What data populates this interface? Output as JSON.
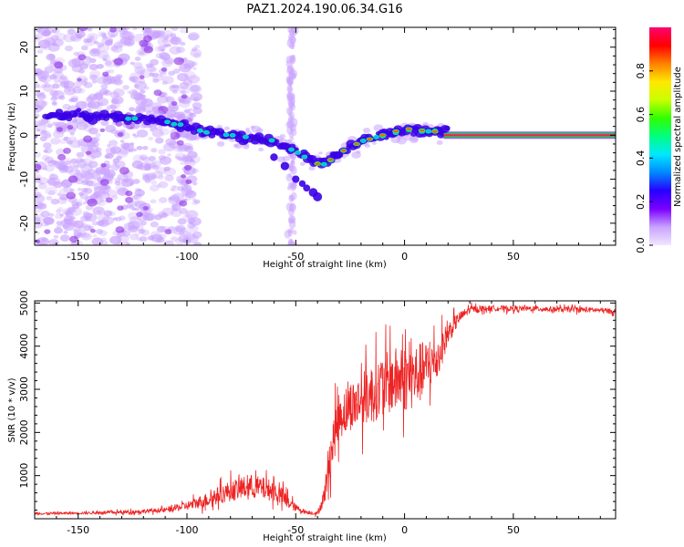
{
  "title": "PAZ1.2024.190.06.34.G16",
  "colors": {
    "snr_line": "#ee2222",
    "flat_band_outer": "#22cc44",
    "flat_band_inner": "#ff1a4a",
    "low_amplitude": "#c9a3ff",
    "mid_amplitude": "#3a00e6",
    "high_amplitude": "#00c8ff"
  },
  "chart_data": [
    {
      "type": "heatmap",
      "xlabel": "Height of straight line (km)",
      "ylabel": "Frequency (Hz)",
      "xlim": [
        -170,
        97
      ],
      "ylim": [
        -25,
        24.5
      ],
      "xticks": [
        -150,
        -100,
        -50,
        0,
        50
      ],
      "yticks": [
        -20,
        -10,
        0,
        10,
        20
      ],
      "colorbar": {
        "label": "Normalized spectral amplitude",
        "range": [
          0,
          1
        ],
        "ticks": [
          0.0,
          0.2,
          0.4,
          0.6,
          0.8
        ],
        "colormap": [
          "#f2e6ff",
          "#c9a3ff",
          "#7a00ff",
          "#2800ff",
          "#0088ff",
          "#00e8ff",
          "#00ff80",
          "#30ff00",
          "#c8ff00",
          "#ffe800",
          "#ff8000",
          "#ff0000",
          "#ff0070"
        ]
      },
      "ridge": {
        "x": [
          -165,
          -150,
          -130,
          -110,
          -100,
          -90,
          -80,
          -70,
          -60,
          -50,
          -45,
          -40,
          -35,
          -30,
          -20,
          -10,
          0,
          10,
          20,
          97
        ],
        "frequency": [
          4.5,
          4.5,
          4.0,
          3.0,
          2.0,
          0.5,
          0.0,
          -0.5,
          -1.5,
          -3.5,
          -5.0,
          -6.5,
          -6.0,
          -4.0,
          -1.5,
          0.0,
          1.5,
          1.0,
          0.5,
          0.0
        ]
      },
      "flat_tone": {
        "x_start": 18,
        "x_end": 97,
        "frequency": 0
      },
      "broadband_region_x": [
        -170,
        -95
      ],
      "vertical_streak_x": -52,
      "branch": {
        "x": [
          -60,
          -55,
          -50,
          -47,
          -45,
          -42,
          -40
        ],
        "frequency": [
          -5,
          -7,
          -10,
          -11,
          -12,
          -13,
          -14
        ]
      }
    },
    {
      "type": "line",
      "xlabel": "Height of straight line (km)",
      "ylabel": "SNR (10 * v/v)",
      "xlim": [
        -170,
        97
      ],
      "ylim": [
        0,
        5050
      ],
      "xticks": [
        -150,
        -100,
        -50,
        0,
        50
      ],
      "yticks": [
        1000,
        2000,
        3000,
        4000,
        5000
      ],
      "series": [
        {
          "x": [
            -170,
            -150,
            -130,
            -110,
            -100,
            -90,
            -80,
            -70,
            -60,
            -55,
            -50,
            -45,
            -40,
            -37,
            -35,
            -32,
            -30,
            -25,
            -20,
            -15,
            -10,
            -5,
            0,
            5,
            10,
            15,
            20,
            25,
            30,
            40,
            50,
            60,
            70,
            80,
            90,
            97
          ],
          "values": [
            120,
            130,
            150,
            200,
            300,
            450,
            650,
            750,
            650,
            450,
            250,
            150,
            120,
            500,
            1200,
            2000,
            2400,
            2600,
            2750,
            2900,
            3100,
            3200,
            3250,
            3300,
            3500,
            3700,
            4300,
            4650,
            4850,
            4880,
            4870,
            4870,
            4850,
            4850,
            4830,
            4800
          ],
          "noise": [
            40,
            40,
            60,
            80,
            150,
            250,
            350,
            400,
            350,
            300,
            120,
            60,
            60,
            300,
            700,
            800,
            800,
            800,
            900,
            1000,
            1000,
            1100,
            1100,
            1100,
            900,
            700,
            400,
            200,
            120,
            90,
            90,
            90,
            90,
            90,
            90,
            90
          ]
        }
      ]
    }
  ]
}
